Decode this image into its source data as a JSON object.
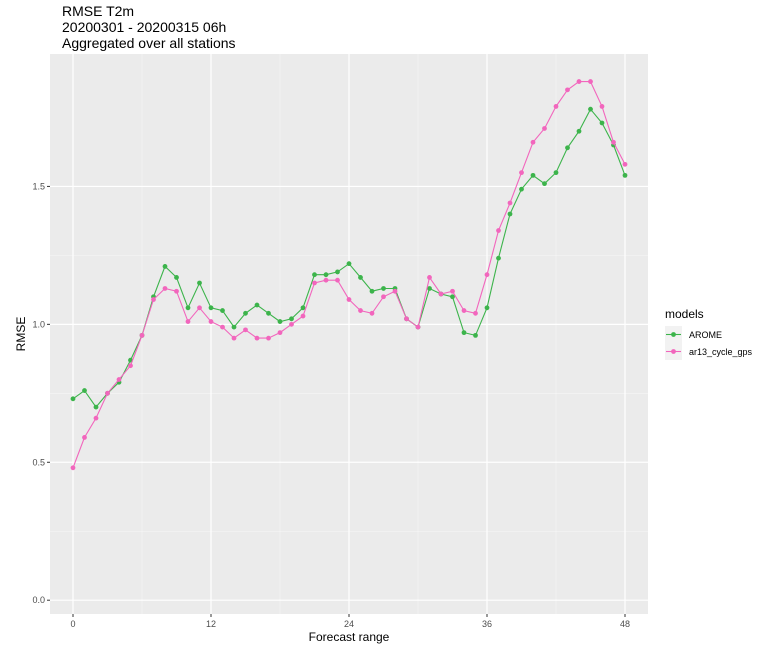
{
  "chart_data": {
    "type": "line",
    "title": "RMSE T2m",
    "subtitle_1": "20200301 - 20200315 06h",
    "subtitle_2": "Aggregated over all stations",
    "xlabel": "Forecast range",
    "ylabel": "RMSE",
    "xlim": [
      -2,
      50
    ],
    "ylim": [
      -0.05,
      1.98
    ],
    "xticks": [
      0,
      12,
      24,
      36,
      48
    ],
    "yticks": [
      0.0,
      0.5,
      1.0,
      1.5
    ],
    "ytick_labels": [
      "0.0",
      "0.5",
      "1.0",
      "1.5"
    ],
    "xtick_labels": [
      "0",
      "12",
      "24",
      "36",
      "48"
    ],
    "legend_title": "models",
    "legend_position": "right",
    "grid": true,
    "x": [
      0,
      1,
      2,
      3,
      4,
      5,
      6,
      7,
      8,
      9,
      10,
      11,
      12,
      13,
      14,
      15,
      16,
      17,
      18,
      19,
      20,
      21,
      22,
      23,
      24,
      25,
      26,
      27,
      28,
      29,
      30,
      31,
      32,
      33,
      34,
      35,
      36,
      37,
      38,
      39,
      40,
      41,
      42,
      43,
      44,
      45,
      46,
      47,
      48
    ],
    "series": [
      {
        "name": "AROME",
        "color": "#3cb44b",
        "values": [
          0.73,
          0.76,
          0.7,
          0.75,
          0.79,
          0.87,
          0.96,
          1.1,
          1.21,
          1.17,
          1.06,
          1.15,
          1.06,
          1.05,
          0.99,
          1.04,
          1.07,
          1.04,
          1.01,
          1.02,
          1.06,
          1.18,
          1.18,
          1.19,
          1.22,
          1.17,
          1.12,
          1.13,
          1.13,
          1.02,
          0.99,
          1.13,
          1.11,
          1.1,
          0.97,
          0.96,
          1.06,
          1.24,
          1.4,
          1.49,
          1.54,
          1.51,
          1.55,
          1.64,
          1.7,
          1.78,
          1.73,
          1.65,
          1.54
        ]
      },
      {
        "name": "ar13_cycle_gps",
        "color": "#f266bd",
        "values": [
          0.48,
          0.59,
          0.66,
          0.75,
          0.8,
          0.85,
          0.96,
          1.09,
          1.13,
          1.12,
          1.01,
          1.06,
          1.01,
          0.99,
          0.95,
          0.98,
          0.95,
          0.95,
          0.97,
          1.0,
          1.03,
          1.15,
          1.16,
          1.16,
          1.09,
          1.05,
          1.04,
          1.1,
          1.12,
          1.02,
          0.99,
          1.17,
          1.11,
          1.12,
          1.05,
          1.04,
          1.18,
          1.34,
          1.44,
          1.55,
          1.66,
          1.71,
          1.79,
          1.85,
          1.88,
          1.88,
          1.79,
          1.66,
          1.58
        ]
      }
    ]
  }
}
